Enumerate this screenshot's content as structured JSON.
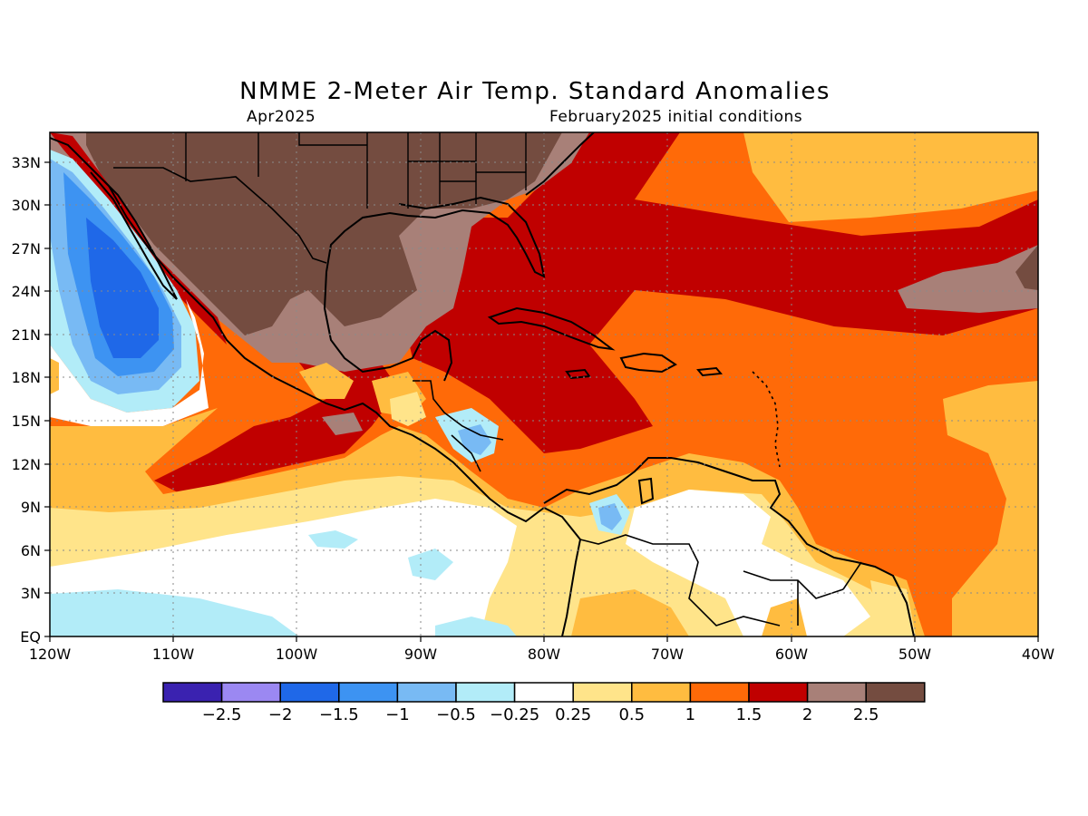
{
  "title": "NMME 2-Meter Air Temp. Standard Anomalies",
  "valid_month": "Apr2025",
  "init_label": "February2025 initial conditions",
  "lat_labels": [
    "33N",
    "30N",
    "27N",
    "24N",
    "21N",
    "18N",
    "15N",
    "12N",
    "9N",
    "6N",
    "3N",
    "EQ"
  ],
  "lon_labels": [
    "120W",
    "110W",
    "100W",
    "90W",
    "80W",
    "70W",
    "60W",
    "50W",
    "40W"
  ],
  "colorbar": {
    "labels": [
      "−2.5",
      "−2",
      "−1.5",
      "−1",
      "−0.5",
      "−0.25",
      "0.25",
      "0.5",
      "1",
      "1.5",
      "2",
      "2.5"
    ],
    "colors": [
      "#3a22b0",
      "#9b88f2",
      "#1f68e8",
      "#3d93f2",
      "#78baf4",
      "#b2ecf8",
      "#ffffff",
      "#ffe48a",
      "#ffbc40",
      "#ff6a08",
      "#c00000",
      "#a88078",
      "#744c40"
    ]
  },
  "anomaly_colors": {
    "land_darkbrown": "#744c40",
    "lightbrown": "#a88078",
    "darkred": "#c00000",
    "orange": "#ff6a08",
    "lightorange": "#ffbc40",
    "yellow": "#ffe48a",
    "white": "#ffffff",
    "paleblue": "#b2ecf8",
    "lightblue": "#78baf4",
    "midblue": "#3d93f2",
    "blue": "#1f68e8"
  }
}
